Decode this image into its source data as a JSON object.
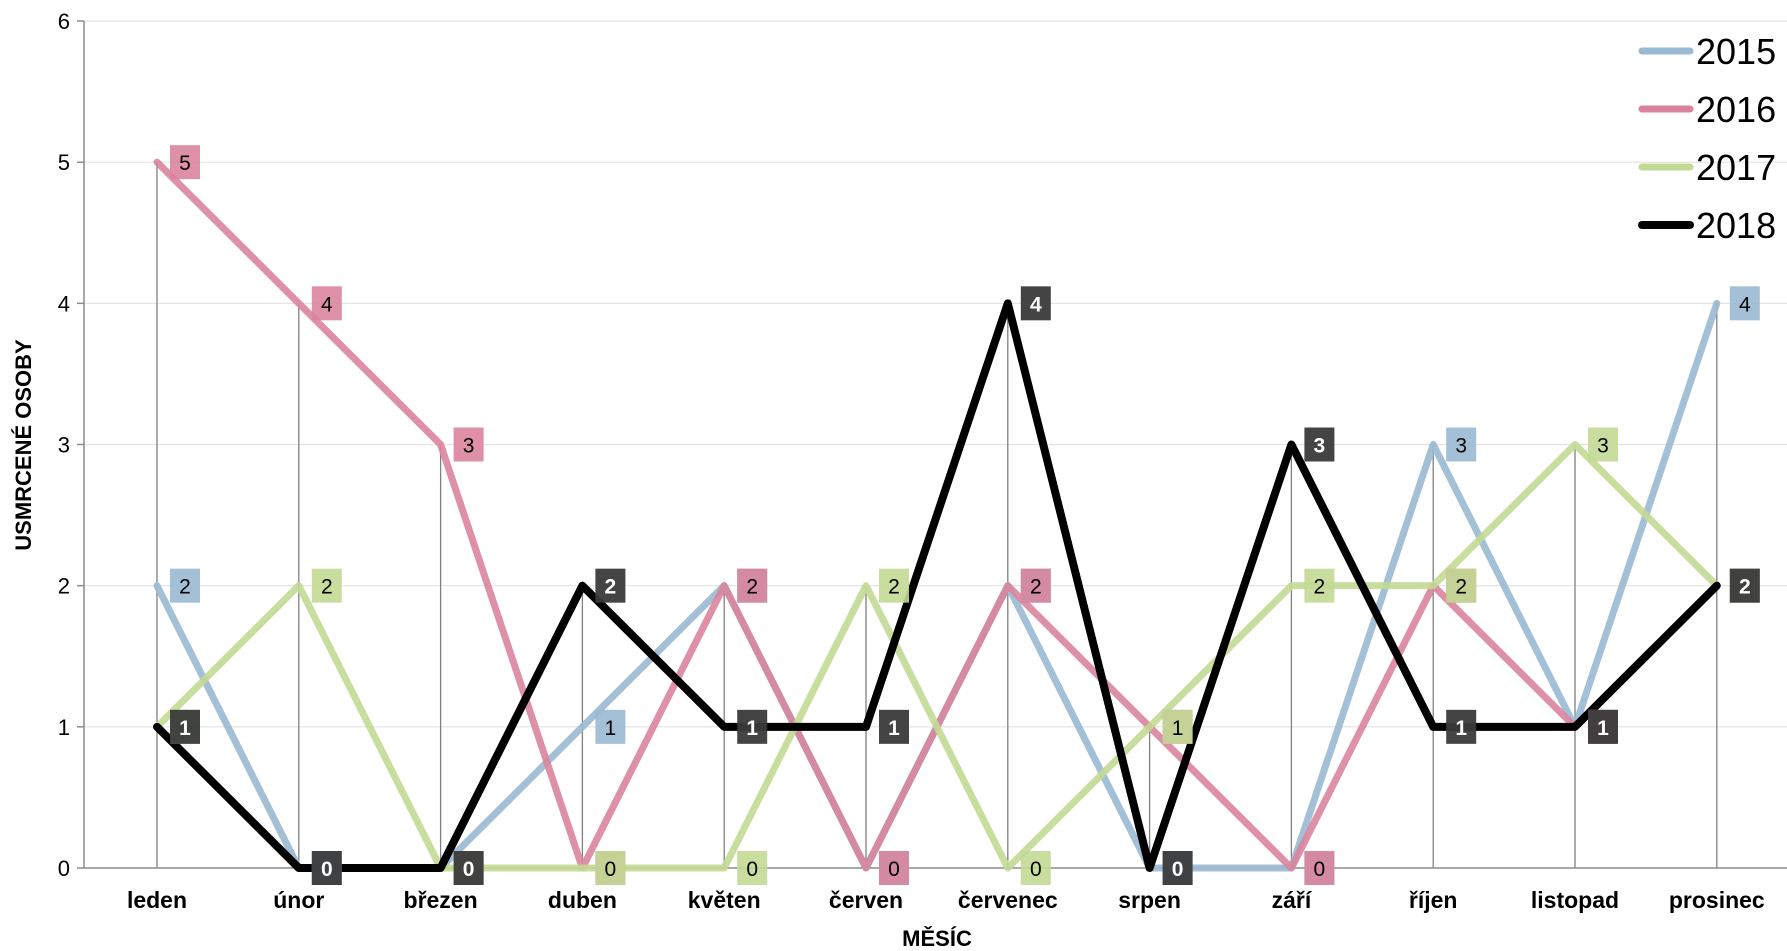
{
  "chart_data": {
    "type": "line",
    "categories": [
      "leden",
      "únor",
      "březen",
      "duben",
      "květen",
      "červen",
      "červenec",
      "srpen",
      "září",
      "říjen",
      "listopad",
      "prosinec"
    ],
    "series": [
      {
        "name": "2015",
        "color": "#9ab9d3",
        "values": [
          2,
          0,
          0,
          1,
          2,
          0,
          2,
          0,
          0,
          3,
          1,
          4
        ]
      },
      {
        "name": "2016",
        "color": "#d9849c",
        "values": [
          5,
          4,
          3,
          0,
          2,
          0,
          2,
          1,
          0,
          2,
          1,
          2
        ]
      },
      {
        "name": "2017",
        "color": "#c2d994",
        "values": [
          1,
          2,
          0,
          0,
          0,
          2,
          0,
          1,
          2,
          2,
          3,
          2
        ]
      },
      {
        "name": "2018",
        "color": "#000000",
        "values": [
          1,
          0,
          0,
          2,
          1,
          1,
          4,
          0,
          3,
          1,
          1,
          2
        ]
      }
    ],
    "xlabel": "MĚSÍC",
    "ylabel": "USMRCENÉ OSOBY",
    "ylim": [
      0,
      6
    ],
    "yticks": [
      "0",
      "1",
      "2",
      "3",
      "4",
      "5",
      "6"
    ],
    "grid": true,
    "drop_lines": true,
    "data_labels": true,
    "legend_position": "top-right"
  }
}
